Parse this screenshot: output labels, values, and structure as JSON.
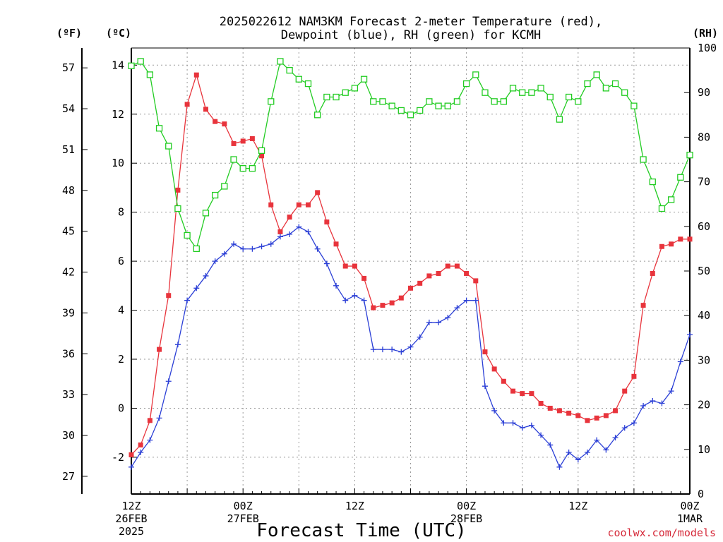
{
  "chart_data": {
    "type": "line",
    "title_line1": "2025022612 NAM3KM Forecast 2-meter Temperature (red),",
    "title_line2": "Dewpoint (blue), RH (green) for KCMH",
    "xlabel": "Forecast Time (UTC)",
    "credit": "coolwx.com/models",
    "x_hours": [
      0,
      1,
      2,
      3,
      4,
      5,
      6,
      7,
      8,
      9,
      10,
      11,
      12,
      13,
      14,
      15,
      16,
      17,
      18,
      19,
      20,
      21,
      22,
      23,
      24,
      25,
      26,
      27,
      28,
      29,
      30,
      31,
      32,
      33,
      34,
      35,
      36,
      37,
      38,
      39,
      40,
      41,
      42,
      43,
      44,
      45,
      46,
      47,
      48,
      49,
      50,
      51,
      52,
      53,
      54,
      55,
      56,
      57,
      58,
      59,
      60
    ],
    "xlim": [
      0,
      60
    ],
    "x_ticks": [
      {
        "hour": 0,
        "label1": "12Z",
        "label2": "26FEB",
        "label3": "2025"
      },
      {
        "hour": 12,
        "label1": "00Z",
        "label2": "27FEB",
        "label3": ""
      },
      {
        "hour": 24,
        "label1": "12Z",
        "label2": "",
        "label3": ""
      },
      {
        "hour": 36,
        "label1": "00Z",
        "label2": "28FEB",
        "label3": ""
      },
      {
        "hour": 48,
        "label1": "12Z",
        "label2": "",
        "label3": ""
      },
      {
        "hour": 60,
        "label1": "00Z",
        "label2": "1MAR",
        "label3": ""
      }
    ],
    "axes": {
      "celsius": {
        "unit_label": "(ºC)",
        "ylim": [
          -3.5,
          14.7
        ],
        "ticks": [
          -2,
          0,
          2,
          4,
          6,
          8,
          10,
          12,
          14
        ]
      },
      "fahrenheit": {
        "unit_label": "(ºF)",
        "ticks": [
          27,
          30,
          33,
          36,
          39,
          42,
          45,
          48,
          51,
          54,
          57
        ]
      },
      "rh": {
        "unit_label": "(RH)",
        "ylim": [
          0,
          100
        ],
        "ticks": [
          0,
          10,
          20,
          30,
          40,
          50,
          60,
          70,
          80,
          90,
          100
        ]
      }
    },
    "grid": true,
    "series": [
      {
        "color": "#e8343c",
        "marker": "filled-square",
        "axis": "celsius",
        "values": [
          -1.9,
          -1.5,
          -0.5,
          2.4,
          4.6,
          8.9,
          12.4,
          13.6,
          12.2,
          11.7,
          11.6,
          10.8,
          10.9,
          11.0,
          10.3,
          8.3,
          7.2,
          7.8,
          8.3,
          8.3,
          8.8,
          7.6,
          6.7,
          5.8,
          5.8,
          5.3,
          4.1,
          4.2,
          4.3,
          4.5,
          4.9,
          5.1,
          5.4,
          5.5,
          5.8,
          5.8,
          5.5,
          5.2,
          2.3,
          1.6,
          1.1,
          0.7,
          0.6,
          0.6,
          0.2,
          0.0,
          -0.1,
          -0.2,
          -0.3,
          -0.5,
          -0.4,
          -0.3,
          -0.1,
          0.7,
          1.3,
          4.2,
          5.5,
          6.6,
          6.7,
          6.9,
          6.9
        ]
      },
      {
        "color": "#2b3fd6",
        "marker": "plus",
        "axis": "celsius",
        "values": [
          -2.4,
          -1.8,
          -1.3,
          -0.4,
          1.1,
          2.6,
          4.4,
          4.9,
          5.4,
          6.0,
          6.3,
          6.7,
          6.5,
          6.5,
          6.6,
          6.7,
          7.0,
          7.1,
          7.4,
          7.2,
          6.5,
          5.9,
          5.0,
          4.4,
          4.6,
          4.4,
          2.4,
          2.4,
          2.4,
          2.3,
          2.5,
          2.9,
          3.5,
          3.5,
          3.7,
          4.1,
          4.4,
          4.4,
          0.9,
          -0.1,
          -0.6,
          -0.6,
          -0.8,
          -0.7,
          -1.1,
          -1.5,
          -2.4,
          -1.8,
          -2.1,
          -1.8,
          -1.3,
          -1.7,
          -1.2,
          -0.8,
          -0.6,
          0.1,
          0.3,
          0.2,
          0.7,
          1.9,
          3.0
        ]
      },
      {
        "color": "#22cc22",
        "marker": "open-square",
        "axis": "rh",
        "values": [
          96,
          97,
          94,
          82,
          78,
          64,
          58,
          55,
          63,
          67,
          69,
          75,
          73,
          73,
          77,
          88,
          97,
          95,
          93,
          92,
          85,
          89,
          89,
          90,
          91,
          93,
          88,
          88,
          87,
          86,
          85,
          86,
          88,
          87,
          87,
          88,
          92,
          94,
          90,
          88,
          88,
          91,
          90,
          90,
          91,
          89,
          84,
          89,
          88,
          92,
          94,
          91,
          92,
          90,
          87,
          75,
          70,
          64,
          66,
          71,
          76
        ]
      }
    ]
  }
}
